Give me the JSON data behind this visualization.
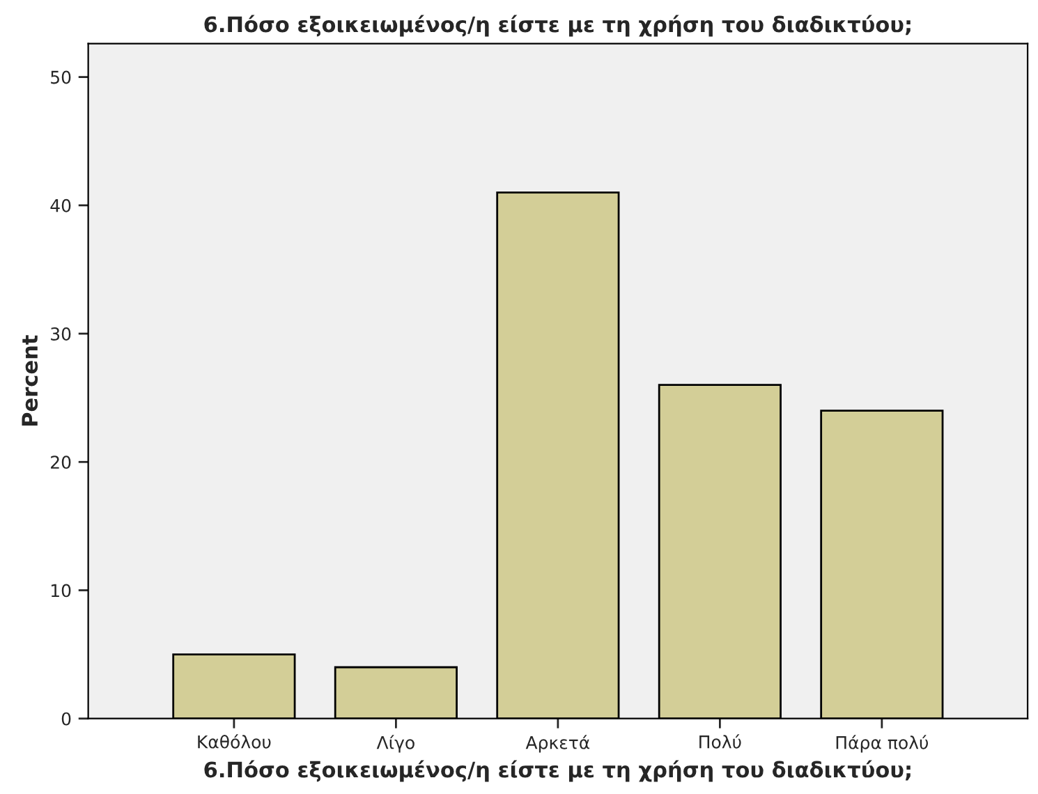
{
  "chart_data": {
    "type": "bar",
    "title": "6.Πόσο εξοικειωμένος/η είστε με τη χρήση του διαδικτύου;",
    "xlabel": "6.Πόσο εξοικειωμένος/η είστε με τη χρήση του διαδικτύου;",
    "ylabel": "Percent",
    "categories": [
      "Καθόλου",
      "Λίγο",
      "Αρκετά",
      "Πολύ",
      "Πάρα πολύ"
    ],
    "values": [
      5,
      4,
      41,
      26,
      24
    ],
    "color": "#d3ce97",
    "ylim": [
      0,
      52.6
    ],
    "yticks": [
      0,
      10,
      20,
      30,
      40,
      50
    ],
    "grid": false
  }
}
